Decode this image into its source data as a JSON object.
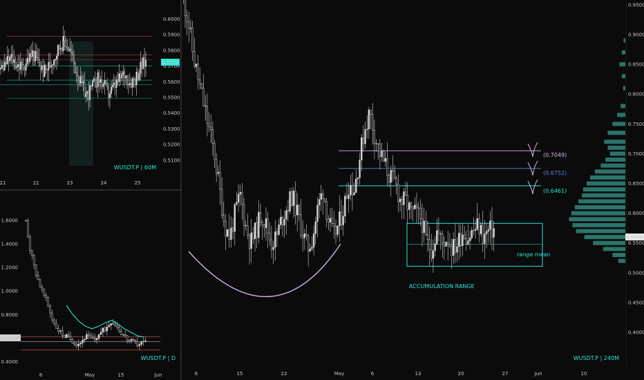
{
  "colors": {
    "background": "#0b0b0b",
    "candle": "#d6d6d6",
    "accent": "#2ee6d6",
    "lavender": "#d7b6e8",
    "blue": "#5a86e8",
    "red": "#e05a5a",
    "profile": "#2f7f74"
  },
  "chart_data": [
    {
      "type": "candlestick",
      "panel": "top-left",
      "symbol_label": "WUSDT.P | 60M",
      "x_tick_labels": [
        "21",
        "22",
        "23",
        "24",
        "25"
      ],
      "y_tick_labels": [
        "0.6000",
        "0.5900",
        "0.5800",
        "0.5700",
        "0.5600",
        "0.5500",
        "0.5400",
        "0.5300",
        "0.5200",
        "0.5100"
      ],
      "ylim": [
        0.5055,
        0.6033
      ],
      "price_badge": "0.5726",
      "horizontal_levels": [
        0.589,
        0.577,
        0.574,
        0.57,
        0.561,
        0.558,
        0.5495
      ],
      "price_path": [
        0.568,
        0.572,
        0.575,
        0.571,
        0.569,
        0.574,
        0.578,
        0.572,
        0.566,
        0.57,
        0.576,
        0.583,
        0.586,
        0.579,
        0.567,
        0.558,
        0.551,
        0.556,
        0.562,
        0.559,
        0.552,
        0.556,
        0.561,
        0.565,
        0.56,
        0.562,
        0.569,
        0.573
      ]
    },
    {
      "type": "candlestick",
      "panel": "bottom-left",
      "symbol_label": "WUSDT.P | D",
      "x_tick_labels": [
        "8",
        "May",
        "15",
        "Jun"
      ],
      "y_tick_labels": [
        "1.6000",
        "1.4000",
        "1.2000",
        "1.0000",
        "0.8000",
        "0.6000",
        "0.4000"
      ],
      "ylim": [
        0.35,
        1.67
      ],
      "price_badge": "0.5726",
      "horizontal_levels": [
        0.61,
        0.57,
        0.5
      ],
      "close_path": [
        1.6,
        1.35,
        1.2,
        1.08,
        0.98,
        0.9,
        0.78,
        0.7,
        0.65,
        0.62,
        0.6,
        0.58,
        0.55,
        0.57,
        0.62,
        0.6,
        0.58,
        0.63,
        0.66,
        0.7,
        0.75,
        0.72,
        0.66,
        0.62,
        0.58,
        0.56,
        0.55,
        0.56,
        0.57
      ],
      "moving_average": [
        0.88,
        0.8,
        0.74,
        0.7,
        0.68,
        0.7,
        0.73,
        0.75,
        0.72,
        0.68,
        0.65,
        0.62,
        0.61
      ]
    },
    {
      "type": "candlestick",
      "panel": "main",
      "symbol_label": "WUSDT.P | 240M",
      "x_tick_labels": [
        "8",
        "15",
        "22",
        "May",
        "6",
        "13",
        "20",
        "27",
        "Jun",
        "10"
      ],
      "y_tick_labels": [
        "0.9500",
        "0.9000",
        "0.8500",
        "0.8000",
        "0.7500",
        "0.7000",
        "0.6500",
        "0.6000",
        "0.5500",
        "0.5000",
        "0.4500",
        "0.4000"
      ],
      "ylim": [
        0.385,
        0.9533
      ],
      "price_badge": "0.5726",
      "levels": [
        {
          "label": "(0.7049)",
          "value": 0.7049,
          "color": "#d7b6e8"
        },
        {
          "label": "(0.6752)",
          "value": 0.6752,
          "color": "#5a86e8"
        },
        {
          "label": "(0.6461)",
          "value": 0.6461,
          "color": "#2ee6d6"
        }
      ],
      "accumulation_range": {
        "top": 0.583,
        "bottom": 0.511,
        "mean": 0.5477
      },
      "annotations": {
        "range_mean": "range mean",
        "accumulation": "ACCUMULATION RANGE"
      },
      "close_path": [
        0.96,
        0.92,
        0.86,
        0.82,
        0.78,
        0.74,
        0.7,
        0.64,
        0.58,
        0.56,
        0.6,
        0.63,
        0.58,
        0.55,
        0.57,
        0.6,
        0.58,
        0.55,
        0.56,
        0.59,
        0.61,
        0.63,
        0.6,
        0.57,
        0.54,
        0.56,
        0.61,
        0.64,
        0.59,
        0.56,
        0.58,
        0.61,
        0.65,
        0.64,
        0.69,
        0.74,
        0.77,
        0.73,
        0.7,
        0.68,
        0.66,
        0.65,
        0.62,
        0.62,
        0.6,
        0.6,
        0.59,
        0.55,
        0.54,
        0.57,
        0.55,
        0.56,
        0.54,
        0.55,
        0.57,
        0.56,
        0.57,
        0.58,
        0.56,
        0.57,
        0.573
      ]
    }
  ]
}
